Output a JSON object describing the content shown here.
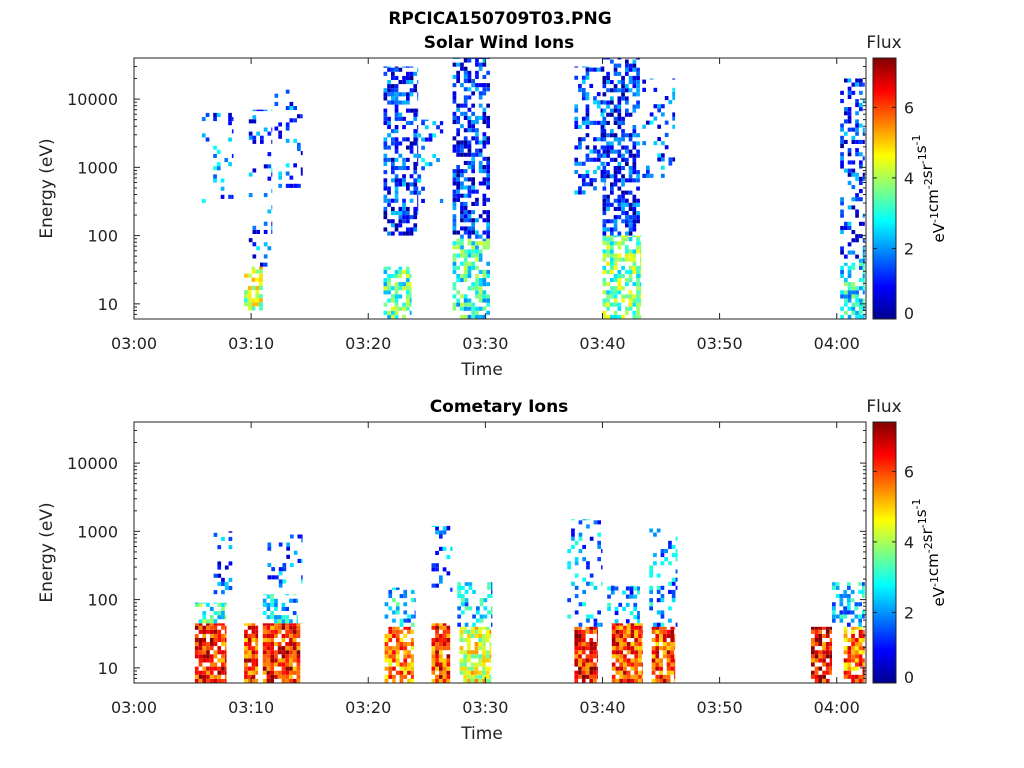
{
  "figure": {
    "title": "RPCICA150709T03.PNG"
  },
  "colormap": [
    "#00008f",
    "#0000ff",
    "#0080ff",
    "#00ffff",
    "#80ff80",
    "#ffff00",
    "#ff8000",
    "#ff0000",
    "#800000"
  ],
  "chart_data": [
    {
      "type": "heatmap",
      "title": "Solar Wind Ions",
      "xlabel": "Time",
      "ylabel": "Energy (eV)",
      "x_ticks": [
        "03:00",
        "03:10",
        "03:20",
        "03:30",
        "03:40",
        "03:50",
        "04:00"
      ],
      "x_tick_minutes": [
        0,
        10,
        20,
        30,
        40,
        50,
        60
      ],
      "xlim_minutes": [
        0,
        62.5
      ],
      "y_scale": "log",
      "y_ticks": [
        "10",
        "100",
        "1000",
        "10000"
      ],
      "y_tick_values": [
        10,
        100,
        1000,
        10000
      ],
      "ylim": [
        6,
        40000
      ],
      "colorbar": {
        "label": "Flux",
        "unit": "eV-1cm-2sr-1s-1",
        "ticks": [
          "0",
          "2",
          "4",
          "6"
        ],
        "tick_values": [
          0,
          2,
          4,
          6
        ],
        "range": [
          0,
          7.4
        ]
      },
      "bursts": [
        {
          "minute_start": 5.8,
          "minute_end": 8.5,
          "energy_min": 300,
          "energy_max": 8000,
          "intensity": 1.8,
          "density": 0.15
        },
        {
          "minute_start": 9.4,
          "minute_end": 11.0,
          "energy_min": 8,
          "energy_max": 35,
          "intensity": 4.2,
          "density": 0.75
        },
        {
          "minute_start": 9.8,
          "minute_end": 11.8,
          "energy_min": 35,
          "energy_max": 7000,
          "intensity": 1.5,
          "density": 0.2
        },
        {
          "minute_start": 12.0,
          "minute_end": 14.4,
          "energy_min": 500,
          "energy_max": 18000,
          "intensity": 1.6,
          "density": 0.15
        },
        {
          "minute_start": 21.3,
          "minute_end": 24.2,
          "energy_min": 100,
          "energy_max": 30000,
          "intensity": 1.2,
          "density": 0.55
        },
        {
          "minute_start": 21.3,
          "minute_end": 23.7,
          "energy_min": 6,
          "energy_max": 35,
          "intensity": 3.3,
          "density": 0.7
        },
        {
          "minute_start": 24.2,
          "minute_end": 26.4,
          "energy_min": 300,
          "energy_max": 5000,
          "intensity": 1.7,
          "density": 0.2
        },
        {
          "minute_start": 27.2,
          "minute_end": 30.4,
          "energy_min": 90,
          "energy_max": 40000,
          "intensity": 1.2,
          "density": 0.55
        },
        {
          "minute_start": 27.2,
          "minute_end": 30.4,
          "energy_min": 6,
          "energy_max": 90,
          "intensity": 3.1,
          "density": 0.6
        },
        {
          "minute_start": 37.6,
          "minute_end": 40.2,
          "energy_min": 400,
          "energy_max": 30000,
          "intensity": 1.4,
          "density": 0.35
        },
        {
          "minute_start": 40.0,
          "minute_end": 43.2,
          "energy_min": 100,
          "energy_max": 40000,
          "intensity": 1.1,
          "density": 0.55
        },
        {
          "minute_start": 40.0,
          "minute_end": 43.3,
          "energy_min": 6,
          "energy_max": 100,
          "intensity": 3.6,
          "density": 0.65
        },
        {
          "minute_start": 43.4,
          "minute_end": 46.2,
          "energy_min": 700,
          "energy_max": 20000,
          "intensity": 1.6,
          "density": 0.2
        },
        {
          "minute_start": 60.3,
          "minute_end": 62.4,
          "energy_min": 6,
          "energy_max": 40,
          "intensity": 2.8,
          "density": 0.6
        },
        {
          "minute_start": 60.3,
          "minute_end": 62.4,
          "energy_min": 40,
          "energy_max": 20000,
          "intensity": 1.3,
          "density": 0.4
        }
      ]
    },
    {
      "type": "heatmap",
      "title": "Cometary Ions",
      "xlabel": "Time",
      "ylabel": "Energy (eV)",
      "x_ticks": [
        "03:00",
        "03:10",
        "03:20",
        "03:30",
        "03:40",
        "03:50",
        "04:00"
      ],
      "x_tick_minutes": [
        0,
        10,
        20,
        30,
        40,
        50,
        60
      ],
      "xlim_minutes": [
        0,
        62.5
      ],
      "y_scale": "log",
      "y_ticks": [
        "10",
        "100",
        "1000",
        "10000"
      ],
      "y_tick_values": [
        10,
        100,
        1000,
        10000
      ],
      "ylim": [
        6,
        40000
      ],
      "colorbar": {
        "label": "Flux",
        "unit": "eV-1cm-2sr-1s-1",
        "ticks": [
          "0",
          "2",
          "4",
          "6"
        ],
        "tick_values": [
          0,
          2,
          4,
          6
        ],
        "range": [
          0,
          7.4
        ]
      },
      "bursts": [
        {
          "minute_start": 5.2,
          "minute_end": 7.9,
          "energy_min": 6,
          "energy_max": 45,
          "intensity": 6.2,
          "density": 0.85
        },
        {
          "minute_start": 5.2,
          "minute_end": 7.9,
          "energy_min": 45,
          "energy_max": 90,
          "intensity": 3.2,
          "density": 0.5
        },
        {
          "minute_start": 6.8,
          "minute_end": 8.4,
          "energy_min": 120,
          "energy_max": 1000,
          "intensity": 1.6,
          "density": 0.2
        },
        {
          "minute_start": 9.4,
          "minute_end": 10.6,
          "energy_min": 6,
          "energy_max": 45,
          "intensity": 6.0,
          "density": 0.85
        },
        {
          "minute_start": 11.0,
          "minute_end": 14.2,
          "energy_min": 6,
          "energy_max": 45,
          "intensity": 6.2,
          "density": 0.85
        },
        {
          "minute_start": 11.0,
          "minute_end": 14.0,
          "energy_min": 45,
          "energy_max": 120,
          "intensity": 2.5,
          "density": 0.5
        },
        {
          "minute_start": 11.4,
          "minute_end": 14.4,
          "energy_min": 150,
          "energy_max": 900,
          "intensity": 1.8,
          "density": 0.2
        },
        {
          "minute_start": 21.4,
          "minute_end": 23.9,
          "energy_min": 6,
          "energy_max": 40,
          "intensity": 5.5,
          "density": 0.75
        },
        {
          "minute_start": 21.4,
          "minute_end": 24.0,
          "energy_min": 40,
          "energy_max": 150,
          "intensity": 2.4,
          "density": 0.4
        },
        {
          "minute_start": 25.4,
          "minute_end": 27.0,
          "energy_min": 6,
          "energy_max": 45,
          "intensity": 6.0,
          "density": 0.85
        },
        {
          "minute_start": 25.4,
          "minute_end": 27.2,
          "energy_min": 130,
          "energy_max": 1200,
          "intensity": 1.6,
          "density": 0.25
        },
        {
          "minute_start": 27.8,
          "minute_end": 30.5,
          "energy_min": 6,
          "energy_max": 40,
          "intensity": 4.4,
          "density": 0.8
        },
        {
          "minute_start": 27.6,
          "minute_end": 30.6,
          "energy_min": 40,
          "energy_max": 180,
          "intensity": 2.4,
          "density": 0.35
        },
        {
          "minute_start": 37.6,
          "minute_end": 39.6,
          "energy_min": 6,
          "energy_max": 40,
          "intensity": 6.3,
          "density": 0.85
        },
        {
          "minute_start": 37.0,
          "minute_end": 40.0,
          "energy_min": 40,
          "energy_max": 1500,
          "intensity": 1.9,
          "density": 0.22
        },
        {
          "minute_start": 40.8,
          "minute_end": 43.4,
          "energy_min": 6,
          "energy_max": 45,
          "intensity": 6.0,
          "density": 0.85
        },
        {
          "minute_start": 40.4,
          "minute_end": 43.2,
          "energy_min": 45,
          "energy_max": 160,
          "intensity": 2.0,
          "density": 0.35
        },
        {
          "minute_start": 44.2,
          "minute_end": 46.2,
          "energy_min": 6,
          "energy_max": 40,
          "intensity": 6.0,
          "density": 0.8
        },
        {
          "minute_start": 44.0,
          "minute_end": 46.4,
          "energy_min": 40,
          "energy_max": 1100,
          "intensity": 2.0,
          "density": 0.25
        },
        {
          "minute_start": 57.8,
          "minute_end": 59.6,
          "energy_min": 6,
          "energy_max": 40,
          "intensity": 6.4,
          "density": 0.8
        },
        {
          "minute_start": 60.6,
          "minute_end": 62.4,
          "energy_min": 6,
          "energy_max": 40,
          "intensity": 5.6,
          "density": 0.8
        },
        {
          "minute_start": 59.6,
          "minute_end": 62.4,
          "energy_min": 40,
          "energy_max": 180,
          "intensity": 2.3,
          "density": 0.45
        }
      ]
    }
  ]
}
